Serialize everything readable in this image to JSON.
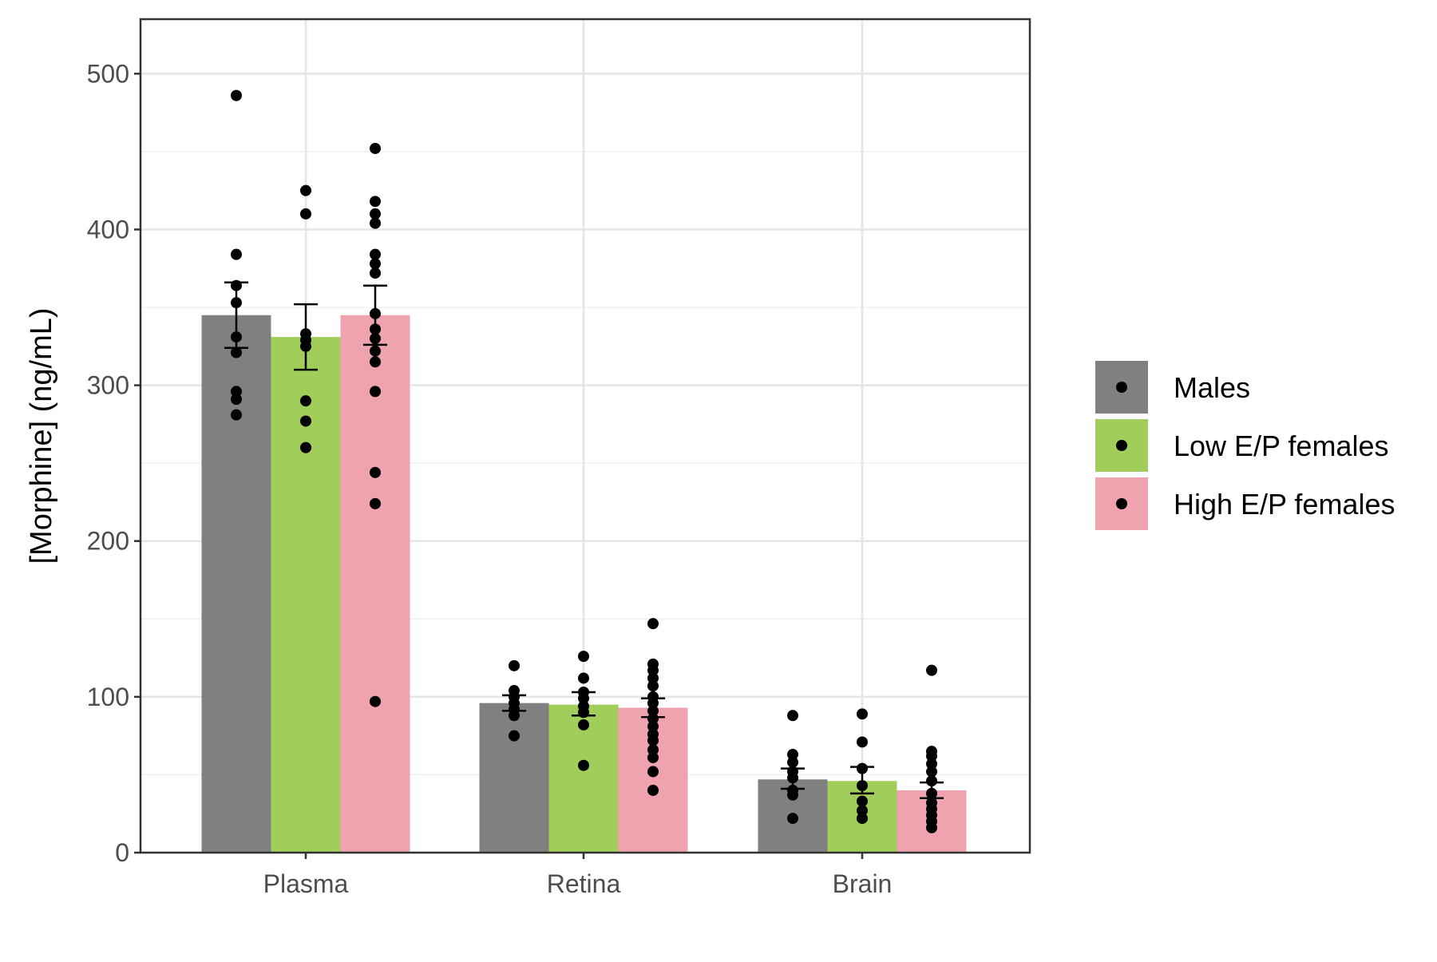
{
  "chart_data": {
    "type": "bar",
    "ylabel": "[Morphine] (ng/mL)",
    "xlabel": "",
    "ylim": [
      0,
      535
    ],
    "y_ticks": [
      0,
      100,
      200,
      300,
      400,
      500
    ],
    "categories": [
      "Plasma",
      "Retina",
      "Brain"
    ],
    "grid": true,
    "legend_position": "right",
    "series": [
      {
        "name": "Males",
        "color": "#808080",
        "values": [
          345,
          96,
          47
        ],
        "error_low": [
          324,
          91,
          41
        ],
        "error_high": [
          366,
          101,
          54
        ],
        "points": [
          [
            486,
            384,
            364,
            353,
            331,
            321,
            296,
            291,
            281
          ],
          [
            120,
            104,
            100,
            96,
            92,
            88,
            75
          ],
          [
            88,
            63,
            58,
            52,
            48,
            40,
            37,
            22
          ]
        ]
      },
      {
        "name": "Low E/P females",
        "color": "#a1cd5a",
        "values": [
          331,
          95,
          46
        ],
        "error_low": [
          310,
          88,
          38
        ],
        "error_high": [
          352,
          103,
          55
        ],
        "points": [
          [
            425,
            410,
            333,
            329,
            325,
            290,
            277,
            260
          ],
          [
            126,
            112,
            103,
            99,
            94,
            90,
            82,
            56
          ],
          [
            89,
            71,
            54,
            43,
            33,
            27,
            22
          ]
        ]
      },
      {
        "name": "High E/P females",
        "color": "#eea3ae",
        "values": [
          345,
          93,
          40
        ],
        "error_low": [
          326,
          87,
          35
        ],
        "error_high": [
          364,
          99,
          45
        ],
        "points": [
          [
            452,
            418,
            410,
            404,
            384,
            378,
            372,
            346,
            336,
            330,
            322,
            315,
            296,
            244,
            224,
            97
          ],
          [
            147,
            121,
            117,
            112,
            107,
            100,
            96,
            91,
            86,
            81,
            76,
            72,
            66,
            61,
            52,
            40
          ],
          [
            117,
            65,
            62,
            57,
            52,
            46,
            38,
            32,
            28,
            24,
            20,
            16
          ]
        ]
      }
    ]
  }
}
